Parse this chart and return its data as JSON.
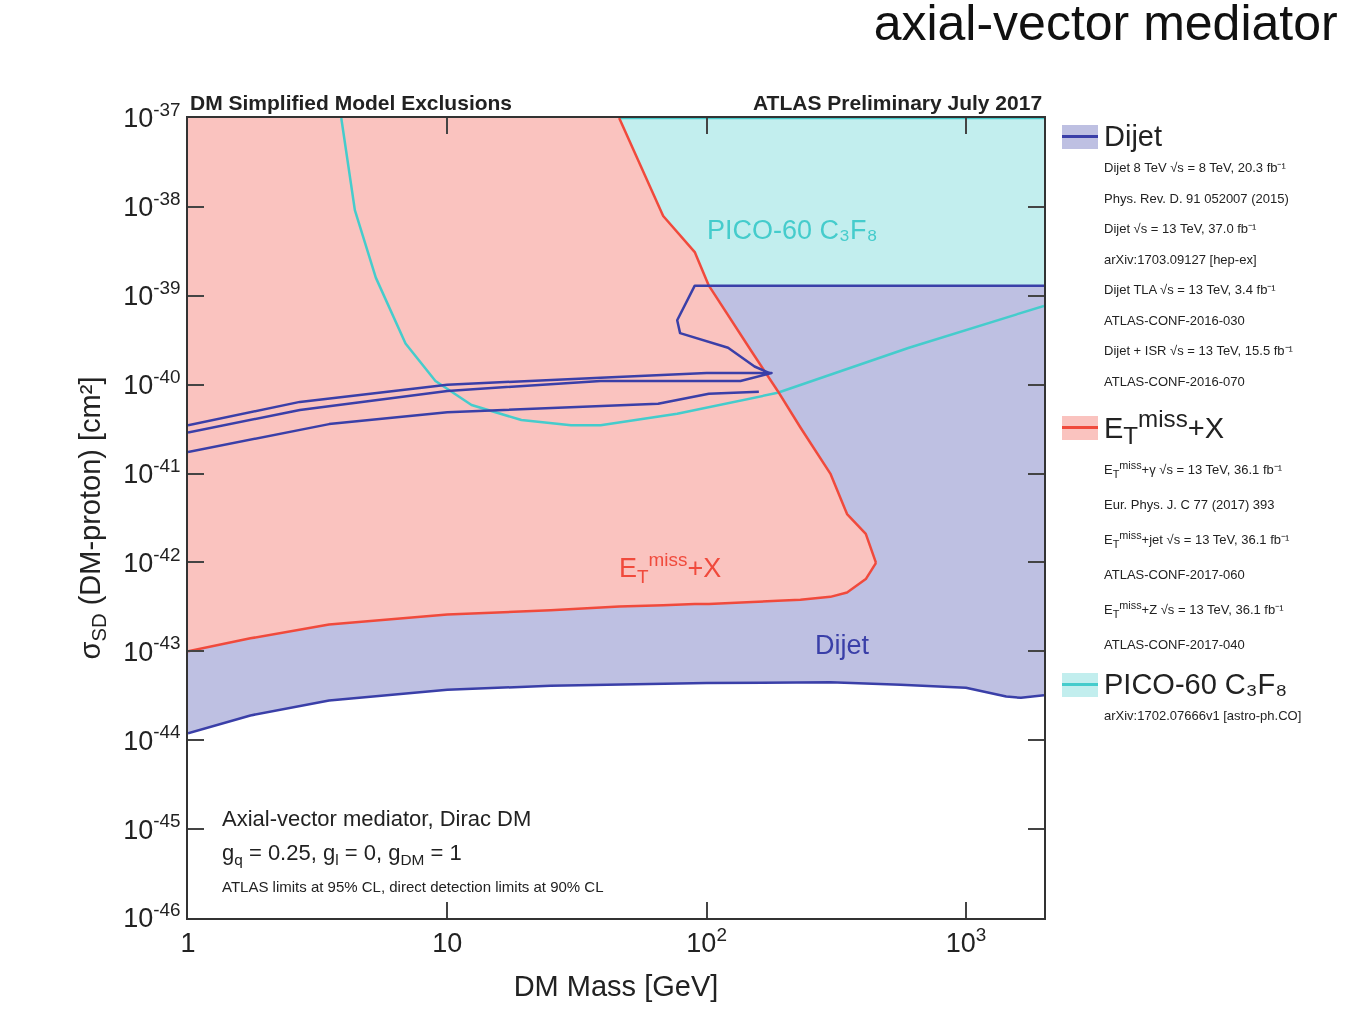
{
  "chart_data": {
    "type": "line",
    "title": "axial-vector mediator",
    "subtitle": "DM Simplified Model Exclusions",
    "xlabel": "DM Mass [GeV]",
    "ylabel": "σ$_{SD}$ (DM-proton) [cm²]",
    "log": "xy",
    "xlim": [
      1,
      2000
    ],
    "ylim": [
      1e-46,
      1e-37
    ],
    "xticks": [
      1,
      10,
      {
        "value": 100,
        "label": "10$^{2}$"
      },
      {
        "value": 1000,
        "label": "10$^{3}$"
      }
    ],
    "yticks": [
      {
        "value": 1e-46,
        "label": "10$^{-46}$"
      },
      {
        "value": 1e-45,
        "label": "10$^{-45}$"
      },
      {
        "value": 1e-44,
        "label": "10$^{-44}$"
      },
      {
        "value": 1e-43,
        "label": "10$^{-43}$"
      },
      {
        "value": 1e-42,
        "label": "10$^{-42}$"
      },
      {
        "value": 1e-41,
        "label": "10$^{-41}$"
      },
      {
        "value": 1e-40,
        "label": "10$^{-40}$"
      },
      {
        "value": 1e-39,
        "label": "10$^{-39}$"
      },
      {
        "value": 1e-38,
        "label": "10$^{-38}$"
      },
      {
        "value": 1e-37,
        "label": "10$^{-37}$"
      }
    ],
    "legend": "right",
    "series": [
      {
        "name": "Dijet",
        "color": "#3a3fa8",
        "x": [
          1,
          1.74,
          3.5,
          10,
          25,
          100,
          300,
          560,
          1000,
          1430,
          1630,
          2000
        ],
        "values": [
          1.2e-44,
          1.9e-44,
          2.8e-44,
          3.7e-44,
          4.1e-44,
          4.4e-44,
          4.5e-44,
          4.2e-44,
          3.9e-44,
          3.1e-44,
          3e-44,
          3.2e-44
        ],
        "lower": [
          1.2e-44,
          1.9e-44,
          2.8e-44,
          3.7e-44,
          4.1e-44,
          4.4e-44,
          4.5e-44,
          4.2e-44,
          3.9e-44,
          3.1e-44,
          3e-44,
          3.2e-44
        ],
        "upper": [
          1.3e-39,
          1.3e-39,
          1.3e-39,
          1.3e-39,
          1.3e-39,
          1.3e-39,
          1.3e-39,
          1.3e-39,
          1.3e-39,
          1.3e-39,
          1.3e-39,
          1.3e-39
        ]
      },
      {
        "name": "E$_{T}$$^{miss}$+X",
        "color": "#f04a3c",
        "x": [
          1,
          1.74,
          3.5,
          10,
          25,
          46,
          68,
          90,
          102,
          150,
          188,
          230,
          300,
          348,
          411,
          450
        ],
        "values": [
          1e-43,
          1.4e-43,
          2e-43,
          2.6e-43,
          2.9e-43,
          3.2e-43,
          3.3e-43,
          3.4e-43,
          3.4e-43,
          3.6e-43,
          3.7e-43,
          3.8e-43,
          4.1e-43,
          4.6e-43,
          6.5e-43,
          9.9e-43
        ],
        "lower": [
          1e-43,
          1.4e-43,
          2e-43,
          2.6e-43,
          2.9e-43,
          3.2e-43,
          3.3e-43,
          3.4e-43,
          3.4e-43,
          3.6e-43,
          3.7e-43,
          3.8e-43,
          4.1e-43,
          4.6e-43,
          6.5e-43,
          9.9e-43
        ],
        "upper": [
          1e-37,
          1e-37,
          1e-37,
          1e-37,
          1e-37,
          1e-37,
          7.9e-39,
          3.1e-39,
          1.3e-39,
          2.3e-40,
          8.5e-41,
          3.3e-41,
          1e-41,
          3.5e-42,
          2.1e-42,
          9.9e-43
        ]
      },
      {
        "name": "PICO-60 C₃F₈",
        "color": "#45cccc",
        "x": [
          3.9,
          4.4,
          5.3,
          6.9,
          9.0,
          12.4,
          19.3,
          30,
          39,
          77,
          188,
          603,
          2000
        ],
        "values": [
          1e-37,
          9.2e-39,
          1.6e-39,
          2.9e-40,
          1.1e-40,
          5.9e-41,
          4e-41,
          3.5e-41,
          3.5e-41,
          4.7e-41,
          8.1e-41,
          2.6e-40,
          7.7e-40
        ]
      },
      {
        "color": "#45cccc",
        "x": [
          46,
          68,
          90,
          102,
          2000
        ],
        "values": [
          1e-37,
          1e-37,
          1e-37,
          1e-37,
          1e-37
        ],
        "lower": [
          1e-37,
          7.9e-39,
          3.1e-39,
          1.3e-39,
          1.3e-39
        ],
        "upper": [
          1e-37,
          1e-37,
          1e-37,
          1e-37,
          1e-37
        ]
      },
      {
        "type": "line",
        "color": "#f04a3c",
        "x": [
          46,
          68,
          90,
          102,
          150,
          188,
          230,
          300,
          348,
          411,
          450
        ],
        "values": [
          1e-37,
          7.9e-39,
          3.1e-39,
          1.3e-39,
          2.3e-40,
          8.5e-41,
          3.3e-41,
          1e-41,
          3.5e-42,
          2.1e-42,
          9.9e-43
        ]
      },
      {
        "type": "line",
        "color": "#3a3fa8",
        "x": [
          1,
          2.7,
          10,
          39,
          100,
          178,
          135,
          39,
          10,
          2.7,
          1
        ],
        "values": [
          3.5e-41,
          6.4e-41,
          1e-40,
          1.2e-40,
          1.35e-40,
          1.35e-40,
          1.1e-40,
          1.1e-40,
          8.5e-41,
          5.2e-41,
          2.9e-41
        ]
      },
      {
        "type": "line",
        "color": "#3a3fa8",
        "x": [
          1,
          3.5,
          10,
          65,
          102,
          159
        ],
        "values": [
          1.75e-41,
          3.6e-41,
          4.9e-41,
          6.1e-41,
          7.9e-41,
          8.3e-41
        ]
      },
      {
        "type": "line",
        "color": "#3a3fa8",
        "x": [
          175,
          153,
          121,
          79,
          77,
          90,
          2000
        ],
        "values": [
          1.35e-40,
          1.6e-40,
          2.6e-40,
          3.8e-40,
          5.3e-40,
          1.3e-39,
          1.3e-39
        ]
      }
    ],
    "annotations": [
      "ATLAS Preliminary July 2017",
      "Axial-vector mediator, Dirac DM",
      "g$_{q}$ = 0.25, g$_{l}$ = 0, g$_{DM}$ = 1",
      "ATLAS limits at 95% CL, direct detection limits at 90% CL",
      "PICO-60 C₃F₈",
      "E$_{T}$$^{miss}$+X",
      "Dijet",
      "Dijet 8 TeV √s = 8 TeV, 20.3 fb⁻¹",
      "Phys. Rev. D. 91 052007 (2015)",
      "Dijet √s = 13 TeV, 37.0 fb⁻¹",
      "arXiv:1703.09127 [hep-ex]",
      "Dijet TLA √s = 13 TeV, 3.4 fb⁻¹",
      "ATLAS-CONF-2016-030",
      "Dijet + ISR √s = 13 TeV, 15.5 fb⁻¹",
      "ATLAS-CONF-2016-070",
      "E$_{T}$$^{miss}$+γ √s = 13 TeV, 36.1 fb⁻¹",
      "Eur. Phys. J. C 77 (2017) 393",
      "E$_{T}$$^{miss}$+jet √s = 13 TeV, 36.1 fb⁻¹",
      "ATLAS-CONF-2017-060",
      "E$_{T}$$^{miss}$+Z √s = 13 TeV, 36.1 fb⁻¹",
      "ATLAS-CONF-2017-040",
      "arXiv:1702.07666v1 [astro-ph.CO]"
    ]
  }
}
